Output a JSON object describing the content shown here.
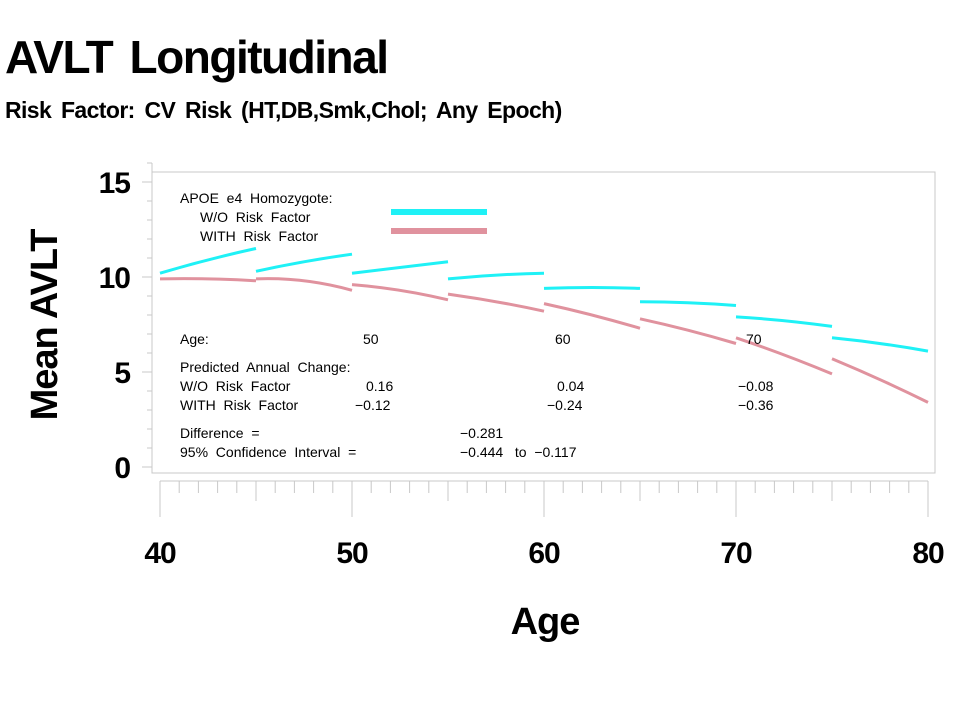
{
  "title": "AVLT  Longitudinal",
  "subtitle": "Risk  Factor:  CV  Risk  (HT,DB,Smk,Chol;  Any  Epoch)",
  "legend": {
    "heading": "APOE  e4  Homozygote:",
    "items": [
      {
        "label": "W/O  Risk  Factor",
        "color": "#1ff1f6"
      },
      {
        "label": "WITH  Risk  Factor",
        "color": "#e0929e"
      }
    ]
  },
  "annotations": {
    "age_label": "Age:",
    "ages": [
      "50",
      "60",
      "70"
    ],
    "predicted_label": "Predicted  Annual  Change:",
    "wo_label": "W/O  Risk  Factor",
    "wo_values": [
      "0.16",
      "0.04",
      "−0.08"
    ],
    "with_label": "WITH  Risk  Factor",
    "with_values": [
      "−0.12",
      "−0.24",
      "−0.36"
    ],
    "difference_label": "Difference  =",
    "difference_value": "−0.281",
    "ci_label": "95%  Confidence  Interval  =",
    "ci_value": "−0.444   to  −0.117"
  },
  "chart_data": {
    "type": "line",
    "title": "AVLT  Longitudinal",
    "subtitle": "Risk  Factor:  CV  Risk  (HT,DB,Smk,Chol;  Any  Epoch)",
    "xlabel": "Age",
    "ylabel": "Mean  AVLT",
    "xlim": [
      40,
      80
    ],
    "ylim": [
      0,
      16
    ],
    "x_ticks": [
      "40",
      "50",
      "60",
      "70",
      "80"
    ],
    "y_ticks": [
      "0",
      "5",
      "10",
      "15"
    ],
    "legend_position": "top-left",
    "series": [
      {
        "name": "W/O  Risk  Factor",
        "color": "#1ff1f6",
        "segments": [
          {
            "x": [
              40,
              42.5,
              45
            ],
            "y": [
              10.2,
              10.9,
              11.5
            ]
          },
          {
            "x": [
              45,
              47.5,
              50
            ],
            "y": [
              10.3,
              10.8,
              11.2
            ]
          },
          {
            "x": [
              50,
              52.5,
              55
            ],
            "y": [
              10.2,
              10.5,
              10.8
            ]
          },
          {
            "x": [
              55,
              57.5,
              60
            ],
            "y": [
              9.9,
              10.1,
              10.2
            ]
          },
          {
            "x": [
              60,
              62.5,
              65
            ],
            "y": [
              9.4,
              9.45,
              9.4
            ]
          },
          {
            "x": [
              65,
              67.5,
              70
            ],
            "y": [
              8.7,
              8.65,
              8.5
            ]
          },
          {
            "x": [
              70,
              72.5,
              75
            ],
            "y": [
              7.9,
              7.7,
              7.4
            ]
          },
          {
            "x": [
              75,
              77.5,
              80
            ],
            "y": [
              6.8,
              6.5,
              6.1
            ]
          }
        ]
      },
      {
        "name": "WITH  Risk  Factor",
        "color": "#e0929e",
        "segments": [
          {
            "x": [
              40,
              42.5,
              45
            ],
            "y": [
              9.9,
              9.9,
              9.8
            ]
          },
          {
            "x": [
              45,
              47.5,
              50
            ],
            "y": [
              9.9,
              9.8,
              9.3
            ]
          },
          {
            "x": [
              50,
              52.5,
              55
            ],
            "y": [
              9.6,
              9.3,
              8.8
            ]
          },
          {
            "x": [
              55,
              57.5,
              60
            ],
            "y": [
              9.1,
              8.7,
              8.2
            ]
          },
          {
            "x": [
              60,
              62.5,
              65
            ],
            "y": [
              8.6,
              8.0,
              7.3
            ]
          },
          {
            "x": [
              65,
              67.5,
              70
            ],
            "y": [
              7.8,
              7.2,
              6.5
            ]
          },
          {
            "x": [
              70,
              72.5,
              75
            ],
            "y": [
              6.8,
              5.9,
              4.9
            ]
          },
          {
            "x": [
              75,
              77.5,
              80
            ],
            "y": [
              5.7,
              4.6,
              3.4
            ]
          }
        ]
      }
    ]
  }
}
